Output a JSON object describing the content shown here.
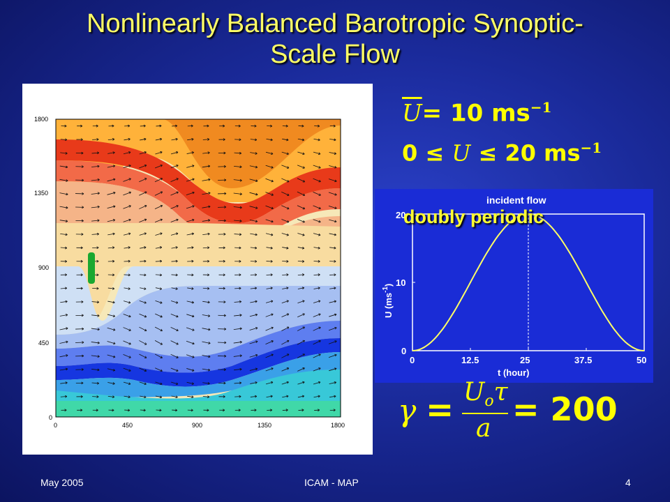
{
  "slide": {
    "title_line1": "Nonlinearly Balanced Barotropic Synoptic-",
    "title_line2": "Scale Flow",
    "footer_left": "May 2005",
    "footer_center": "ICAM - MAP",
    "footer_right": "4",
    "colors": {
      "title": "#ffff66",
      "equation": "#ffff00",
      "background": "#1a2a9a",
      "plot_bg": "#1a2cd6"
    }
  },
  "equations": {
    "ubar_symbol": "U",
    "ubar_rest": "= 10 ms",
    "ubar_exp": "−1",
    "range_left": "0 ≤ ",
    "range_var": "U",
    "range_right": " ≤ 20 ms",
    "range_exp": "−1",
    "gamma_symbol": "γ",
    "gamma_eq": "=",
    "gamma_num": "U",
    "gamma_num_sub": "o",
    "gamma_num_tau": "τ",
    "gamma_den": "a",
    "gamma_value": "= 200"
  },
  "overlay_text": "doubly periodic",
  "chart_data": [
    {
      "type": "contour",
      "xlim": [
        0,
        1800
      ],
      "ylim": [
        0,
        1800
      ],
      "xticks": [
        "0",
        "450",
        "900",
        "1350",
        "1800"
      ],
      "yticks": [
        "0",
        "450",
        "900",
        "1350",
        "1800"
      ]
    },
    {
      "type": "line",
      "title": "incident flow",
      "xlabel": "t (hour)",
      "ylabel": "U (ms",
      "ylabel_exp": "-1",
      "ylabel_close": ")",
      "xlim": [
        0,
        50
      ],
      "ylim": [
        0,
        20
      ],
      "xticks": [
        "0",
        "12.5",
        "25",
        "37.5",
        "50"
      ],
      "yticks": [
        "0",
        "10",
        "20"
      ],
      "series": [
        {
          "x": [
            0,
            12.5,
            25,
            37.5,
            50
          ],
          "y": [
            0,
            10,
            20,
            10,
            0
          ]
        }
      ],
      "marker_line_x": 25,
      "colors": {
        "line": "#ffff66",
        "axes": "#ffffff"
      }
    }
  ]
}
